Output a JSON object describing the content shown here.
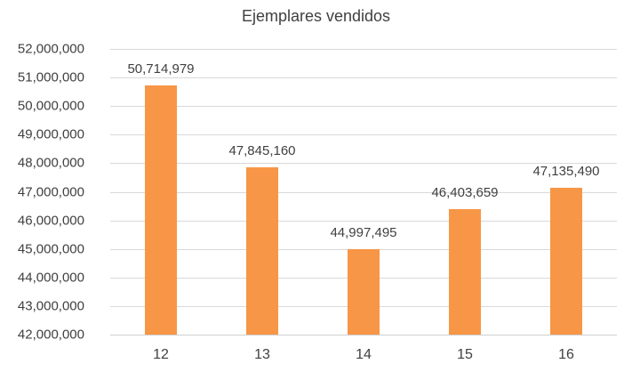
{
  "chart_data": {
    "type": "bar",
    "title": "Ejemplares vendidos",
    "xlabel": "",
    "ylabel": "",
    "categories": [
      "12",
      "13",
      "14",
      "15",
      "16"
    ],
    "values": [
      50714979,
      47845160,
      44997495,
      46403659,
      47135490
    ],
    "data_labels": [
      "50,714,979",
      "47,845,160",
      "44,997,495",
      "46,403,659",
      "47,135,490"
    ],
    "ylim": [
      42000000,
      52000000
    ],
    "yticks": [
      42000000,
      43000000,
      44000000,
      45000000,
      46000000,
      47000000,
      48000000,
      49000000,
      50000000,
      51000000,
      52000000
    ],
    "ytick_labels": [
      "42,000,000",
      "43,000,000",
      "44,000,000",
      "45,000,000",
      "46,000,000",
      "47,000,000",
      "48,000,000",
      "49,000,000",
      "50,000,000",
      "51,000,000",
      "52,000,000"
    ],
    "grid": true,
    "legend": "none",
    "bar_color": "#f79646"
  }
}
